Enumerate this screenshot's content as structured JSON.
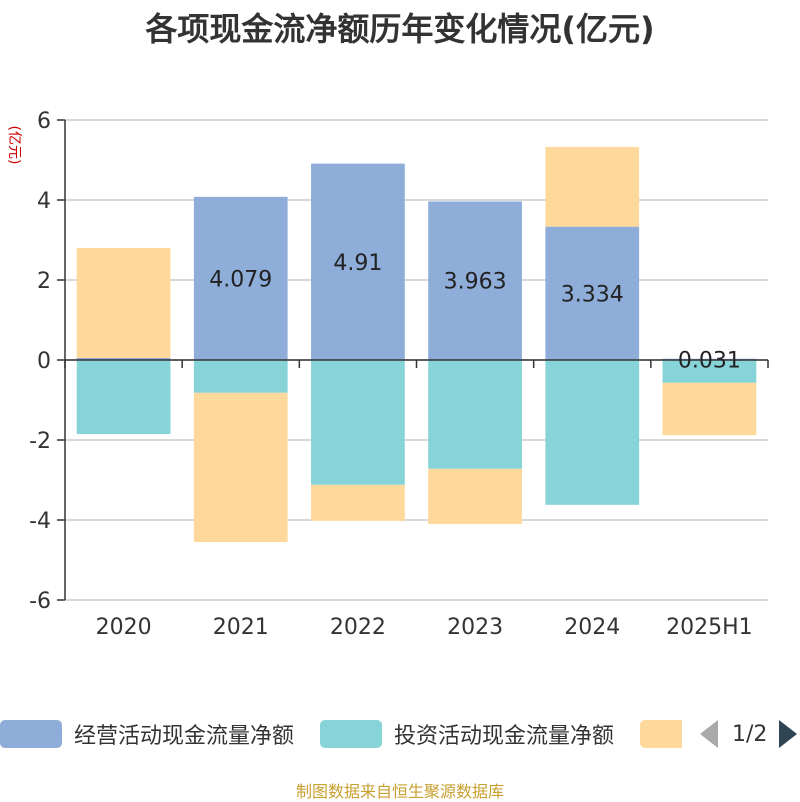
{
  "title": "各项现金流净额历年变化情况(亿元)",
  "source": "制图数据来自恒生聚源数据库",
  "legend_pager": "1/2",
  "chart_data": {
    "type": "bar",
    "stacked": true,
    "ylabel": "(亿元)",
    "ylim": [
      -6,
      6
    ],
    "yticks": [
      -6,
      -4,
      -2,
      0,
      2,
      4,
      6
    ],
    "categories": [
      "2020",
      "2021",
      "2022",
      "2023",
      "2024",
      "2025H1"
    ],
    "grid": true,
    "legend_position": "bottom",
    "series": [
      {
        "name": "经营活动现金流量净额",
        "color": "#8eadd9",
        "values": [
          0.05,
          4.079,
          4.91,
          3.963,
          3.334,
          0.031
        ],
        "labels": [
          "",
          "4.079",
          "4.91",
          "3.963",
          "3.334",
          "0.031"
        ]
      },
      {
        "name": "投资活动现金流量净额",
        "color": "#86d4d8",
        "values": [
          -1.85,
          -0.82,
          -3.12,
          -2.72,
          -3.62,
          -0.57
        ]
      },
      {
        "name": "",
        "color": "#ffd99b",
        "values": [
          2.75,
          -3.73,
          -0.9,
          -1.38,
          1.99,
          -1.31
        ]
      }
    ]
  }
}
